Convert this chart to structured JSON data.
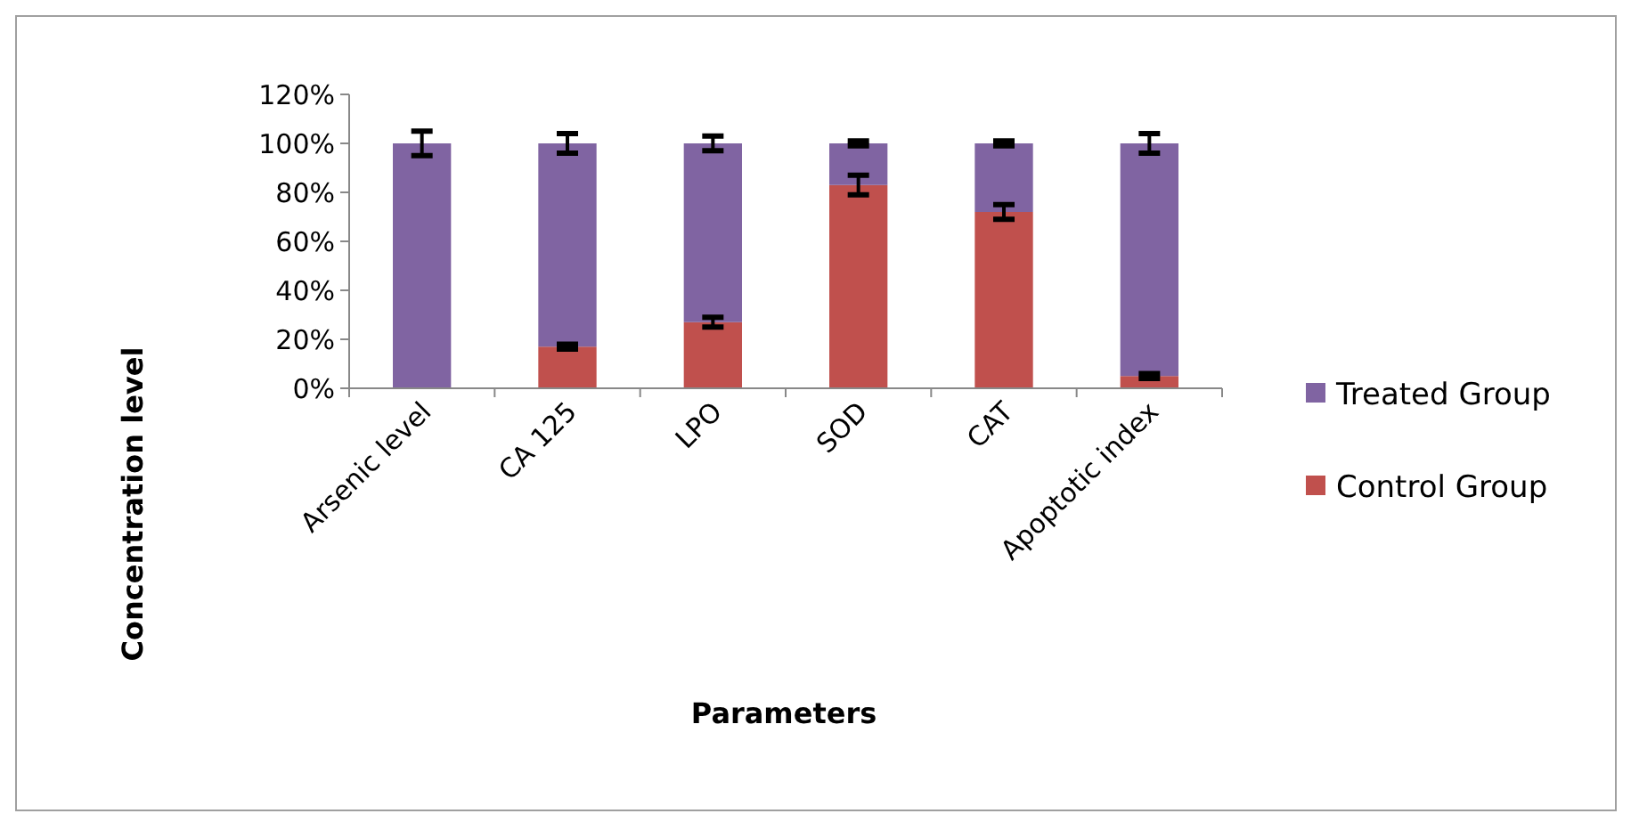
{
  "chart_data": {
    "type": "bar",
    "stacked": true,
    "xlabel": "Parameters",
    "ylabel": "Concentration level",
    "categories": [
      "Arsenic level",
      "CA 125",
      "LPO",
      "SOD",
      "CAT",
      "Apoptotic index"
    ],
    "series": [
      {
        "name": "Control Group",
        "color": "#c0504d",
        "values": [
          0,
          17,
          27,
          83,
          72,
          5
        ],
        "errors": [
          null,
          1,
          2,
          4,
          3,
          1
        ]
      },
      {
        "name": "Treated Group",
        "color": "#8064a2",
        "values": [
          100,
          83,
          73,
          17,
          28,
          95
        ],
        "errors": [
          5,
          4,
          3,
          1,
          1,
          4
        ]
      }
    ],
    "ylim": [
      0,
      120
    ],
    "yticks": [
      {
        "value": 0,
        "label": "0%"
      },
      {
        "value": 20,
        "label": "20%"
      },
      {
        "value": 40,
        "label": "40%"
      },
      {
        "value": 60,
        "label": "60%"
      },
      {
        "value": 80,
        "label": "80%"
      },
      {
        "value": 100,
        "label": "100%"
      },
      {
        "value": 120,
        "label": "120%"
      }
    ],
    "grid": false,
    "legend": "right"
  }
}
